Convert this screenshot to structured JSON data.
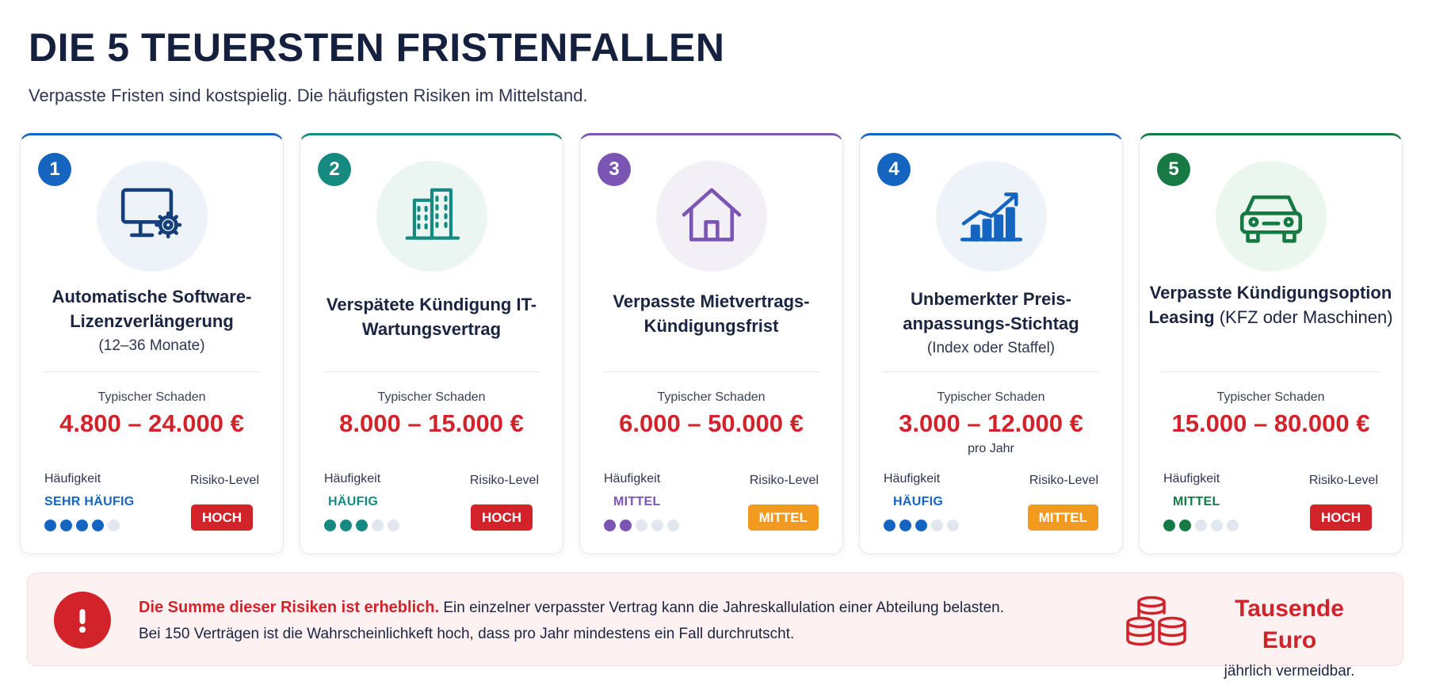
{
  "header": {
    "title": "DIE 5 TEUERSTEN FRISTENFALLEN",
    "subtitle": "Verpasste Fristen sind kostspielig. Die häufigsten Risiken im Mittelstand."
  },
  "labels": {
    "damage": "Typischer Schaden",
    "frequency": "Häufigkeit",
    "risk": "Risiko-Level"
  },
  "cards": [
    {
      "number": "1",
      "icon": "monitor-gear-icon",
      "accent": "#1565c0",
      "icon_bg": "#eef3fa",
      "title": "Automatische Software-Lizenzverlängerung",
      "title_note": "(12–36 Monate)",
      "damage": "4.800 – 24.000 €",
      "damage_note": "",
      "frequency": "SEHR HÄUFIG",
      "frequency_level": 4,
      "risk": "HOCH",
      "risk_color": "#d2232a"
    },
    {
      "number": "2",
      "icon": "office-building-icon",
      "accent": "#168a80",
      "icon_bg": "#ebf6f3",
      "title": "Verspätete Kündigung IT-Wartungsvertrag",
      "title_note": "",
      "damage": "8.000 – 15.000 €",
      "damage_note": "",
      "frequency": "HÄUFIG",
      "frequency_level": 3,
      "risk": "HOCH",
      "risk_color": "#d2232a"
    },
    {
      "number": "3",
      "icon": "house-icon",
      "accent": "#7b55b3",
      "icon_bg": "#f2eff7",
      "title": "Verpasste Mietvertrags-Kündigungsfrist",
      "title_note": "",
      "damage": "6.000 – 50.000 €",
      "damage_note": "",
      "frequency": "MITTEL",
      "frequency_level": 2,
      "risk": "MITTEL",
      "risk_color": "#f29a1f"
    },
    {
      "number": "4",
      "icon": "rising-chart-icon",
      "accent": "#1565c0",
      "icon_bg": "#eef3fa",
      "title": "Unbemerkter Preis-anpassungs-Stichtag",
      "title_note": "(Index oder Staffel)",
      "damage": "3.000 – 12.000 €",
      "damage_note": "pro Jahr",
      "frequency": "HÄUFIG",
      "frequency_level": 3,
      "risk": "MITTEL",
      "risk_color": "#f29a1f"
    },
    {
      "number": "5",
      "icon": "car-icon",
      "accent": "#177a45",
      "icon_bg": "#ebf6ef",
      "title": "Verpasste Kündigungsoption Leasing",
      "title_note": "(KFZ oder Maschinen)",
      "damage": "15.000 – 80.000 €",
      "damage_note": "",
      "frequency": "MITTEL",
      "frequency_level": 2,
      "risk": "HOCH",
      "risk_color": "#d2232a"
    }
  ],
  "alert": {
    "icon": "exclamation-icon",
    "lead": "Die Summe dieser Risiken ist erheblich.",
    "text1": "Ein einzelner verpasster Vertrag kann die Jahreskallulation einer Abteilung belasten.",
    "text2": "Bei 150 Verträgen ist die Wahrscheinlichkeft hoch, dass pro Jahr mindestens ein Fall durchrutscht.",
    "coins_icon": "coin-stack-icon",
    "big": "Tausende Euro",
    "small": "jährlich vermeidbar."
  }
}
